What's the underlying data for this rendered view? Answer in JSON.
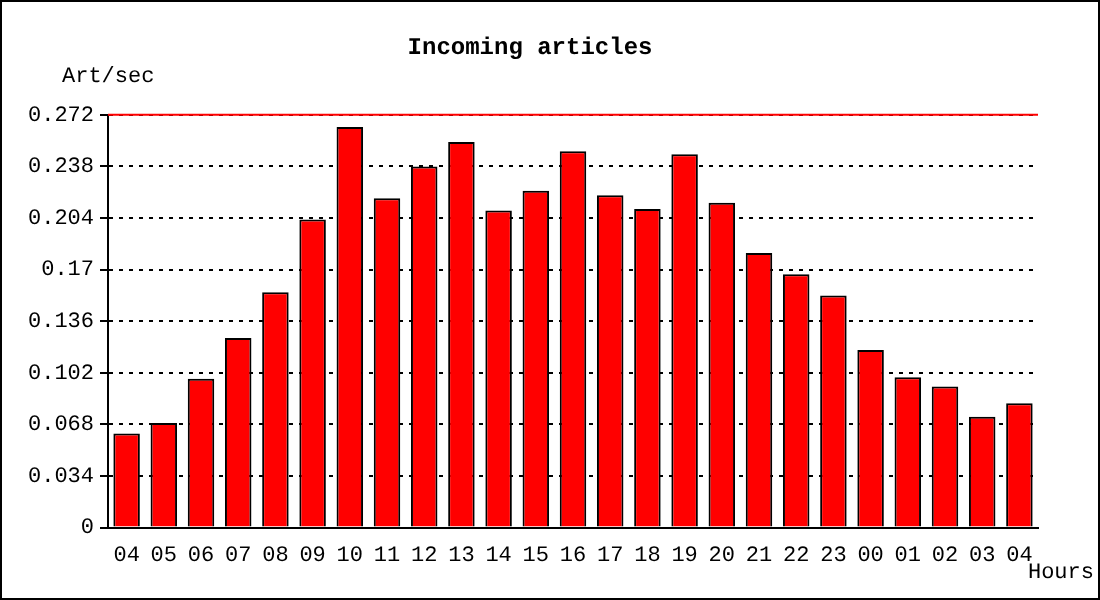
{
  "chart_data": {
    "type": "bar",
    "title": "Incoming articles",
    "ylabel": "Art/sec",
    "xlabel": "Hours",
    "categories": [
      "04",
      "05",
      "06",
      "07",
      "08",
      "09",
      "10",
      "11",
      "12",
      "13",
      "14",
      "15",
      "16",
      "17",
      "18",
      "19",
      "20",
      "21",
      "22",
      "23",
      "00",
      "01",
      "02",
      "03",
      "04"
    ],
    "values": [
      0.062,
      0.069,
      0.098,
      0.125,
      0.155,
      0.203,
      0.264,
      0.217,
      0.238,
      0.254,
      0.209,
      0.222,
      0.248,
      0.219,
      0.21,
      0.246,
      0.214,
      0.181,
      0.167,
      0.153,
      0.117,
      0.099,
      0.093,
      0.073,
      0.082
    ],
    "color": "#ff0000",
    "ylim": [
      0,
      0.272
    ],
    "yticks": [
      0,
      0.034,
      0.068,
      0.102,
      0.136,
      0.17,
      0.204,
      0.238,
      0.272
    ],
    "grid": "y",
    "ref_lines": [
      {
        "axis": "y",
        "value": 0.272,
        "color": "#ff0000"
      }
    ]
  }
}
